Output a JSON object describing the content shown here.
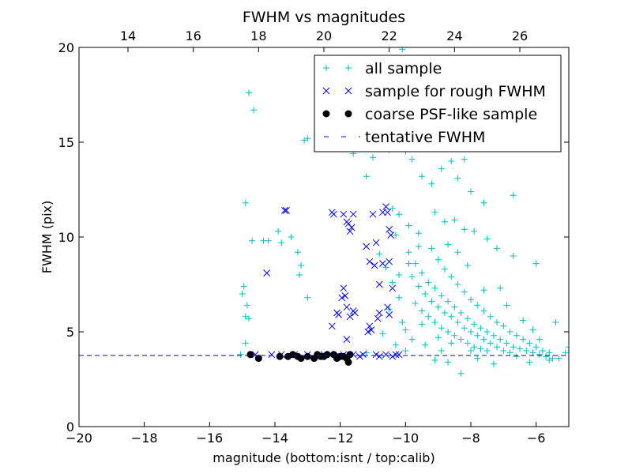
{
  "chart_data": {
    "type": "scatter",
    "title": "FWHM vs magnitudes",
    "xlabel": "magnitude (bottom:isnt / top:calib)",
    "ylabel": "FWHM (pix)",
    "xlim": [
      -20,
      -5
    ],
    "ylim": [
      0,
      20
    ],
    "x_ticks": [
      -20,
      -18,
      -16,
      -14,
      -12,
      -10,
      -8,
      -6
    ],
    "x_tick_labels": [
      "−20",
      "−18",
      "−16",
      "−14",
      "−12",
      "−10",
      "−8",
      "−6"
    ],
    "y_ticks": [
      0,
      5,
      10,
      15,
      20
    ],
    "y_tick_labels": [
      "0",
      "5",
      "10",
      "15",
      "20"
    ],
    "top_axis": {
      "xlim": [
        12.5,
        27.5
      ],
      "ticks": [
        14,
        16,
        18,
        20,
        22,
        24,
        26
      ],
      "tick_labels": [
        "14",
        "16",
        "18",
        "20",
        "22",
        "24",
        "26"
      ]
    },
    "grid": false,
    "legend_position": "upper-right",
    "colors": {
      "all": "#00bfbf",
      "rough": "#0000ff",
      "psf": "#000000",
      "fwhm": "#0000ff"
    },
    "series": [
      {
        "name": "all sample",
        "marker": "plus",
        "points": [
          [
            -14.8,
            17.6
          ],
          [
            -14.65,
            16.7
          ],
          [
            -14.9,
            11.8
          ],
          [
            -14.7,
            9.8
          ],
          [
            -14.95,
            7.4
          ],
          [
            -15.0,
            7.0
          ],
          [
            -14.85,
            6.4
          ],
          [
            -14.9,
            5.8
          ],
          [
            -14.8,
            5.7
          ],
          [
            -14.9,
            4.4
          ],
          [
            -15.05,
            3.8
          ],
          [
            -14.2,
            9.8
          ],
          [
            -14.35,
            9.8
          ],
          [
            -13.9,
            10.3
          ],
          [
            -13.8,
            9.7
          ],
          [
            -13.5,
            10.0
          ],
          [
            -13.3,
            9.2
          ],
          [
            -13.2,
            8.5
          ],
          [
            -13.25,
            8.0
          ],
          [
            -13.0,
            6.8
          ],
          [
            -13.1,
            15.1
          ],
          [
            -13.0,
            15.2
          ],
          [
            -12.4,
            15.4
          ],
          [
            -12.1,
            15.2
          ],
          [
            -11.9,
            15.3
          ],
          [
            -11.6,
            14.4
          ],
          [
            -11.3,
            14.9
          ],
          [
            -11.2,
            13.2
          ],
          [
            -11.0,
            14.2
          ],
          [
            -10.7,
            15.5
          ],
          [
            -10.5,
            14.6
          ],
          [
            -10.1,
            19.9
          ],
          [
            -10.0,
            14.5
          ],
          [
            -9.8,
            14.1
          ],
          [
            -9.5,
            13.2
          ],
          [
            -9.2,
            12.8
          ],
          [
            -8.9,
            13.6
          ],
          [
            -8.6,
            14.0
          ],
          [
            -8.4,
            13.1
          ],
          [
            -8.2,
            14.1
          ],
          [
            -8.0,
            12.4
          ],
          [
            -7.6,
            11.8
          ],
          [
            -6.7,
            12.2
          ],
          [
            -8.9,
            18.9
          ],
          [
            -9.4,
            19.1
          ],
          [
            -8.1,
            18.6
          ],
          [
            -10.4,
            11.5
          ],
          [
            -10.2,
            11.2
          ],
          [
            -10.3,
            10.1
          ],
          [
            -9.9,
            10.6
          ],
          [
            -9.6,
            10.2
          ],
          [
            -9.1,
            11.3
          ],
          [
            -8.8,
            10.8
          ],
          [
            -8.5,
            10.9
          ],
          [
            -8.2,
            10.4
          ],
          [
            -7.9,
            10.3
          ],
          [
            -7.5,
            9.9
          ],
          [
            -7.2,
            9.4
          ],
          [
            -6.7,
            9.0
          ],
          [
            -6.0,
            8.6
          ],
          [
            -10.8,
            9.1
          ],
          [
            -10.6,
            8.4
          ],
          [
            -10.4,
            7.6
          ],
          [
            -10.2,
            6.8
          ],
          [
            -10.5,
            6.2
          ],
          [
            -10.1,
            5.5
          ],
          [
            -10.7,
            4.9
          ],
          [
            -10.3,
            4.3
          ],
          [
            -10.0,
            4.0
          ],
          [
            -11.2,
            3.9
          ],
          [
            -9.9,
            9.2
          ],
          [
            -9.7,
            8.6
          ],
          [
            -9.5,
            8.1
          ],
          [
            -9.3,
            7.6
          ],
          [
            -9.1,
            7.3
          ],
          [
            -8.9,
            6.9
          ],
          [
            -8.7,
            6.6
          ],
          [
            -8.5,
            6.3
          ],
          [
            -8.3,
            6.0
          ],
          [
            -8.1,
            5.7
          ],
          [
            -7.9,
            5.4
          ],
          [
            -7.7,
            5.2
          ],
          [
            -7.5,
            5.0
          ],
          [
            -7.3,
            4.8
          ],
          [
            -7.1,
            4.6
          ],
          [
            -6.9,
            4.4
          ],
          [
            -6.7,
            4.2
          ],
          [
            -6.5,
            4.1
          ],
          [
            -6.3,
            4.0
          ],
          [
            -6.1,
            3.9
          ],
          [
            -5.9,
            3.8
          ],
          [
            -5.7,
            3.7
          ],
          [
            -5.5,
            3.6
          ],
          [
            -5.3,
            3.6
          ],
          [
            -9.8,
            7.9
          ],
          [
            -9.6,
            7.4
          ],
          [
            -9.4,
            7.0
          ],
          [
            -9.2,
            6.6
          ],
          [
            -9.0,
            6.3
          ],
          [
            -8.8,
            6.0
          ],
          [
            -8.6,
            5.8
          ],
          [
            -8.4,
            5.5
          ],
          [
            -8.2,
            5.2
          ],
          [
            -8.0,
            5.0
          ],
          [
            -7.8,
            4.8
          ],
          [
            -7.6,
            4.6
          ],
          [
            -7.4,
            4.4
          ],
          [
            -7.2,
            4.2
          ],
          [
            -7.0,
            4.0
          ],
          [
            -6.8,
            3.9
          ],
          [
            -9.7,
            6.5
          ],
          [
            -9.5,
            6.1
          ],
          [
            -9.3,
            5.8
          ],
          [
            -9.1,
            5.5
          ],
          [
            -8.9,
            5.2
          ],
          [
            -8.7,
            5.0
          ],
          [
            -8.5,
            4.8
          ],
          [
            -8.3,
            4.6
          ],
          [
            -8.1,
            4.4
          ],
          [
            -7.9,
            4.2
          ],
          [
            -7.7,
            4.1
          ],
          [
            -7.5,
            4.0
          ],
          [
            -9.0,
            8.8
          ],
          [
            -8.8,
            8.3
          ],
          [
            -8.6,
            7.9
          ],
          [
            -8.4,
            7.5
          ],
          [
            -8.2,
            7.1
          ],
          [
            -8.0,
            6.7
          ],
          [
            -7.8,
            6.4
          ],
          [
            -7.6,
            6.1
          ],
          [
            -7.4,
            5.8
          ],
          [
            -7.2,
            5.5
          ],
          [
            -7.0,
            5.3
          ],
          [
            -6.8,
            5.0
          ],
          [
            -6.6,
            4.8
          ],
          [
            -6.4,
            4.6
          ],
          [
            -6.2,
            4.4
          ],
          [
            -6.0,
            4.2
          ],
          [
            -5.8,
            4.0
          ],
          [
            -5.6,
            3.9
          ],
          [
            -5.4,
            5.5
          ],
          [
            -5.1,
            3.9
          ],
          [
            -5.0,
            4.2
          ],
          [
            -6.4,
            5.6
          ],
          [
            -6.9,
            6.4
          ],
          [
            -7.1,
            7.3
          ],
          [
            -7.6,
            7.2
          ],
          [
            -8.1,
            8.5
          ],
          [
            -8.4,
            9.2
          ],
          [
            -8.7,
            9.6
          ],
          [
            -9.2,
            9.4
          ],
          [
            -9.6,
            9.5
          ],
          [
            -9.9,
            8.6
          ],
          [
            -10.2,
            8.0
          ],
          [
            -8.3,
            2.8
          ],
          [
            -8.7,
            3.4
          ],
          [
            -9.1,
            3.5
          ],
          [
            -7.3,
            3.3
          ],
          [
            -6.2,
            3.4
          ],
          [
            -5.6,
            3.5
          ],
          [
            -5.9,
            4.6
          ],
          [
            -6.1,
            5.1
          ],
          [
            -6.6,
            3.7
          ],
          [
            -7.8,
            3.6
          ],
          [
            -8.9,
            4.0
          ],
          [
            -9.4,
            4.3
          ],
          [
            -9.8,
            4.6
          ],
          [
            -10.0,
            5.1
          ],
          [
            -9.5,
            5.4
          ],
          [
            -9.0,
            4.7
          ],
          [
            -8.6,
            4.4
          ],
          [
            -8.0,
            4.0
          ]
        ]
      },
      {
        "name": "sample for rough FWHM",
        "marker": "x",
        "points": [
          [
            -13.7,
            11.4
          ],
          [
            -13.65,
            11.4
          ],
          [
            -12.25,
            11.3
          ],
          [
            -12.2,
            11.2
          ],
          [
            -11.9,
            11.2
          ],
          [
            -11.6,
            11.2
          ],
          [
            -11.0,
            11.2
          ],
          [
            -10.7,
            11.3
          ],
          [
            -10.6,
            11.6
          ],
          [
            -10.55,
            11.3
          ],
          [
            -11.75,
            10.7
          ],
          [
            -11.7,
            10.3
          ],
          [
            -10.5,
            10.4
          ],
          [
            -10.45,
            10.1
          ],
          [
            -11.65,
            10.5
          ],
          [
            -11.8,
            10.8
          ],
          [
            -14.25,
            8.1
          ],
          [
            -11.2,
            9.5
          ],
          [
            -10.9,
            9.7
          ],
          [
            -11.1,
            8.7
          ],
          [
            -10.95,
            8.5
          ],
          [
            -10.7,
            8.6
          ],
          [
            -10.5,
            8.7
          ],
          [
            -10.8,
            7.5
          ],
          [
            -10.4,
            7.3
          ],
          [
            -11.9,
            7.3
          ],
          [
            -11.85,
            6.9
          ],
          [
            -11.95,
            6.8
          ],
          [
            -11.8,
            6.3
          ],
          [
            -12.05,
            5.9
          ],
          [
            -12.1,
            6.0
          ],
          [
            -11.7,
            5.8
          ],
          [
            -11.6,
            6.1
          ],
          [
            -11.55,
            6.0
          ],
          [
            -10.8,
            6.0
          ],
          [
            -10.85,
            5.7
          ],
          [
            -10.55,
            6.3
          ],
          [
            -10.5,
            5.9
          ],
          [
            -11.1,
            5.3
          ],
          [
            -11.05,
            5.1
          ],
          [
            -11.15,
            5.0
          ],
          [
            -12.25,
            5.3
          ],
          [
            -11.8,
            4.6
          ],
          [
            -10.3,
            3.8
          ],
          [
            -10.6,
            3.8
          ],
          [
            -10.9,
            3.8
          ],
          [
            -11.3,
            3.8
          ],
          [
            -11.6,
            3.8
          ],
          [
            -11.9,
            3.8
          ],
          [
            -12.5,
            3.8
          ],
          [
            -13.0,
            3.8
          ],
          [
            -13.4,
            3.8
          ],
          [
            -13.8,
            3.8
          ],
          [
            -14.1,
            3.8
          ],
          [
            -14.6,
            3.8
          ],
          [
            -10.2,
            3.8
          ],
          [
            -10.4,
            3.7
          ],
          [
            -10.8,
            3.7
          ],
          [
            -11.4,
            3.7
          ],
          [
            -12.0,
            3.7
          ]
        ]
      },
      {
        "name": "coarse PSF-like sample",
        "marker": "circle",
        "points": [
          [
            -14.75,
            3.8
          ],
          [
            -14.5,
            3.6
          ],
          [
            -13.85,
            3.7
          ],
          [
            -13.6,
            3.7
          ],
          [
            -13.45,
            3.8
          ],
          [
            -13.3,
            3.7
          ],
          [
            -13.0,
            3.7
          ],
          [
            -12.8,
            3.6
          ],
          [
            -12.6,
            3.7
          ],
          [
            -12.4,
            3.8
          ],
          [
            -12.2,
            3.8
          ],
          [
            -12.0,
            3.7
          ],
          [
            -11.9,
            3.7
          ],
          [
            -11.8,
            3.6
          ],
          [
            -11.7,
            3.8
          ],
          [
            -11.75,
            3.4
          ],
          [
            -12.1,
            3.6
          ],
          [
            -12.5,
            3.7
          ],
          [
            -13.2,
            3.6
          ],
          [
            -12.7,
            3.8
          ]
        ]
      },
      {
        "name": "tentative FWHM",
        "marker": "dashed-line",
        "y": 3.75
      }
    ]
  }
}
